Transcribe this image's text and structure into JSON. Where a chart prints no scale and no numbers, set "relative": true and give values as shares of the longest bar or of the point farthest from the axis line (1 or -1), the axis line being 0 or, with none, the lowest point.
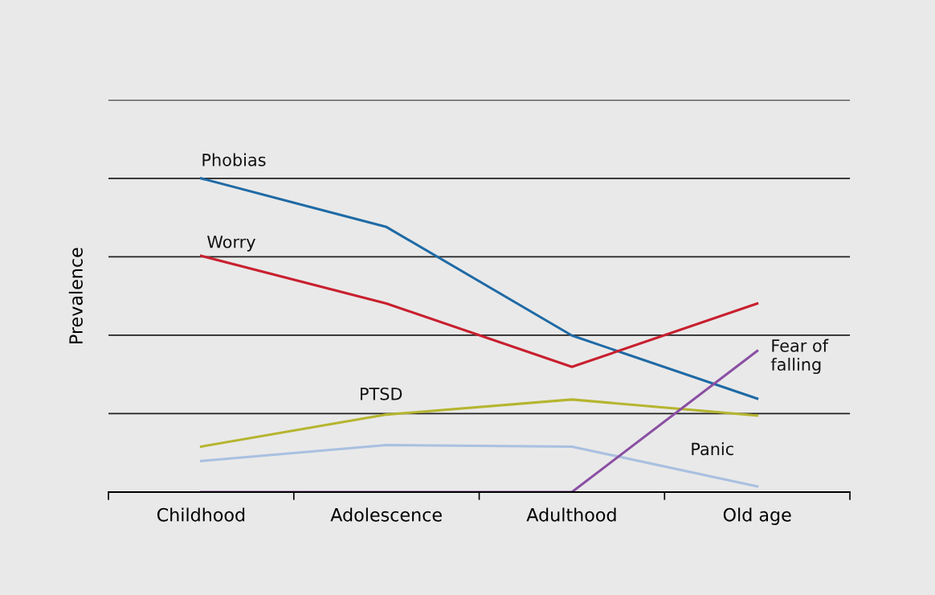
{
  "chart_data": {
    "type": "line",
    "ylabel": "Prevalence",
    "relative": true,
    "categories": [
      "Childhood",
      "Adolescence",
      "Adulthood",
      "Old age"
    ],
    "grid": "y",
    "legend": false,
    "marker": "none",
    "line_style": "solid",
    "series": [
      {
        "name": "Phobias",
        "color": "#1f6aa5",
        "values": [
          1.0,
          0.845,
          0.499,
          0.298
        ]
      },
      {
        "name": "Worry",
        "color": "#c8202f",
        "values": [
          0.753,
          0.601,
          0.399,
          0.601
        ]
      },
      {
        "name": "PTSD",
        "color": "#b5b530",
        "values": [
          0.145,
          0.247,
          0.295,
          0.244
        ]
      },
      {
        "name": "Panic",
        "color": "#a9c0e0",
        "values": [
          0.099,
          0.15,
          0.145,
          0.018
        ]
      },
      {
        "name": "Fear of\nfalling",
        "color": "#8a4fa3",
        "values": [
          0.0,
          0.0,
          0.0,
          0.45
        ]
      }
    ]
  }
}
